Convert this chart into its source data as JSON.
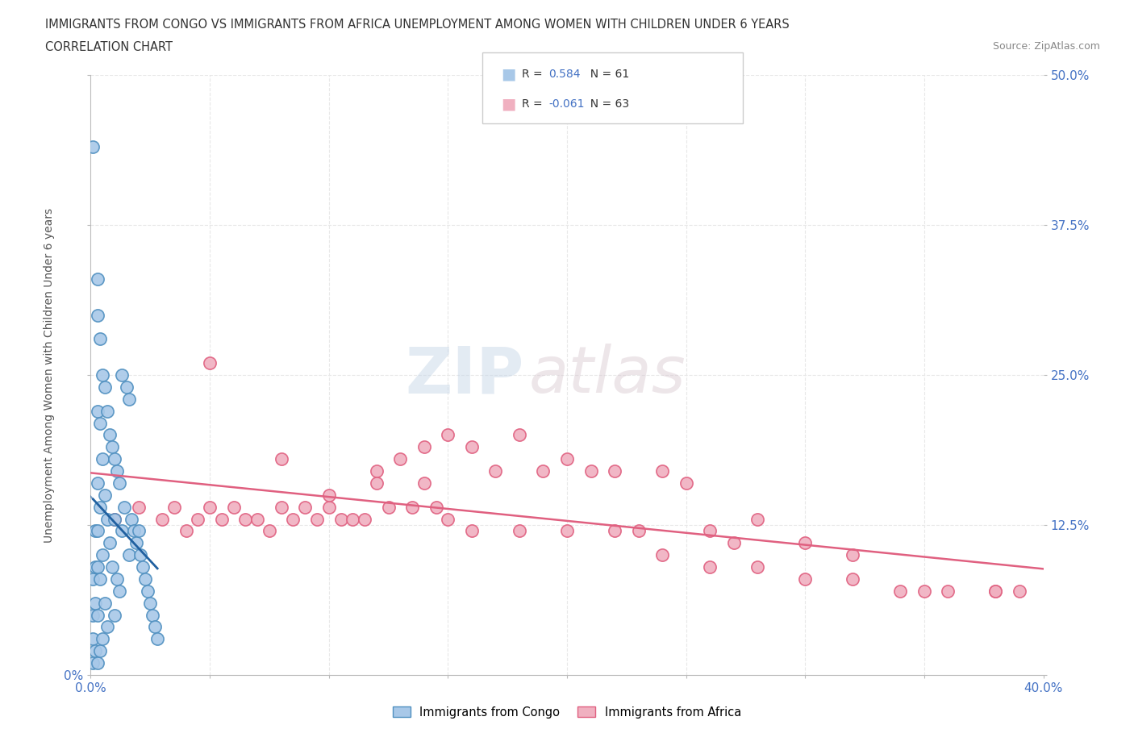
{
  "title_line1": "IMMIGRANTS FROM CONGO VS IMMIGRANTS FROM AFRICA UNEMPLOYMENT AMONG WOMEN WITH CHILDREN UNDER 6 YEARS",
  "title_line2": "CORRELATION CHART",
  "source": "Source: ZipAtlas.com",
  "ylabel": "Unemployment Among Women with Children Under 6 years",
  "xlim": [
    0.0,
    0.4
  ],
  "ylim": [
    0.0,
    0.5
  ],
  "yticks": [
    0.0,
    0.125,
    0.25,
    0.375,
    0.5
  ],
  "ytick_labels_right": [
    "",
    "12.5%",
    "25.0%",
    "37.5%",
    "50.0%"
  ],
  "ytick_labels_left": [
    "0%",
    "",
    "",
    "",
    ""
  ],
  "xtick_labels": [
    "0.0%",
    "",
    "",
    "",
    "",
    "",
    "",
    "",
    "40.0%"
  ],
  "legend_r1_val": "0.584",
  "legend_n1": "N = 61",
  "legend_r2_val": "-0.061",
  "legend_n2": "N = 63",
  "color_congo": "#A8C8E8",
  "color_africa": "#F0B0C0",
  "color_congo_edge": "#5090C0",
  "color_africa_edge": "#E06080",
  "color_congo_line": "#2060A0",
  "color_africa_line": "#E06080",
  "watermark_zip": "ZIP",
  "watermark_atlas": "atlas",
  "background_color": "#FFFFFF",
  "grid_color": "#E8E8E8",
  "congo_x": [
    0.001,
    0.001,
    0.001,
    0.001,
    0.001,
    0.002,
    0.002,
    0.002,
    0.002,
    0.003,
    0.003,
    0.003,
    0.003,
    0.003,
    0.003,
    0.003,
    0.003,
    0.004,
    0.004,
    0.004,
    0.004,
    0.004,
    0.005,
    0.005,
    0.005,
    0.005,
    0.006,
    0.006,
    0.006,
    0.007,
    0.007,
    0.007,
    0.008,
    0.008,
    0.009,
    0.009,
    0.01,
    0.01,
    0.01,
    0.011,
    0.011,
    0.012,
    0.012,
    0.013,
    0.013,
    0.014,
    0.015,
    0.016,
    0.016,
    0.017,
    0.018,
    0.019,
    0.02,
    0.021,
    0.022,
    0.023,
    0.024,
    0.025,
    0.026,
    0.027,
    0.028
  ],
  "congo_y": [
    0.44,
    0.08,
    0.05,
    0.03,
    0.01,
    0.12,
    0.09,
    0.06,
    0.02,
    0.33,
    0.3,
    0.22,
    0.16,
    0.12,
    0.09,
    0.05,
    0.01,
    0.28,
    0.21,
    0.14,
    0.08,
    0.02,
    0.25,
    0.18,
    0.1,
    0.03,
    0.24,
    0.15,
    0.06,
    0.22,
    0.13,
    0.04,
    0.2,
    0.11,
    0.19,
    0.09,
    0.18,
    0.13,
    0.05,
    0.17,
    0.08,
    0.16,
    0.07,
    0.25,
    0.12,
    0.14,
    0.24,
    0.23,
    0.1,
    0.13,
    0.12,
    0.11,
    0.12,
    0.1,
    0.09,
    0.08,
    0.07,
    0.06,
    0.05,
    0.04,
    0.03
  ],
  "africa_x": [
    0.01,
    0.02,
    0.03,
    0.035,
    0.04,
    0.045,
    0.05,
    0.055,
    0.06,
    0.065,
    0.07,
    0.075,
    0.08,
    0.085,
    0.09,
    0.095,
    0.1,
    0.105,
    0.11,
    0.115,
    0.12,
    0.125,
    0.13,
    0.135,
    0.14,
    0.145,
    0.15,
    0.16,
    0.17,
    0.18,
    0.19,
    0.2,
    0.21,
    0.22,
    0.23,
    0.24,
    0.25,
    0.26,
    0.27,
    0.28,
    0.3,
    0.32,
    0.34,
    0.36,
    0.38,
    0.39,
    0.05,
    0.08,
    0.1,
    0.12,
    0.14,
    0.15,
    0.16,
    0.18,
    0.2,
    0.22,
    0.24,
    0.26,
    0.28,
    0.3,
    0.32,
    0.35,
    0.38
  ],
  "africa_y": [
    0.13,
    0.14,
    0.13,
    0.14,
    0.12,
    0.13,
    0.14,
    0.13,
    0.14,
    0.13,
    0.13,
    0.12,
    0.14,
    0.13,
    0.14,
    0.13,
    0.14,
    0.13,
    0.13,
    0.13,
    0.17,
    0.14,
    0.18,
    0.14,
    0.19,
    0.14,
    0.2,
    0.19,
    0.17,
    0.2,
    0.17,
    0.18,
    0.17,
    0.17,
    0.12,
    0.17,
    0.16,
    0.12,
    0.11,
    0.13,
    0.11,
    0.1,
    0.07,
    0.07,
    0.07,
    0.07,
    0.26,
    0.18,
    0.15,
    0.16,
    0.16,
    0.13,
    0.12,
    0.12,
    0.12,
    0.12,
    0.1,
    0.09,
    0.09,
    0.08,
    0.08,
    0.07,
    0.07
  ]
}
